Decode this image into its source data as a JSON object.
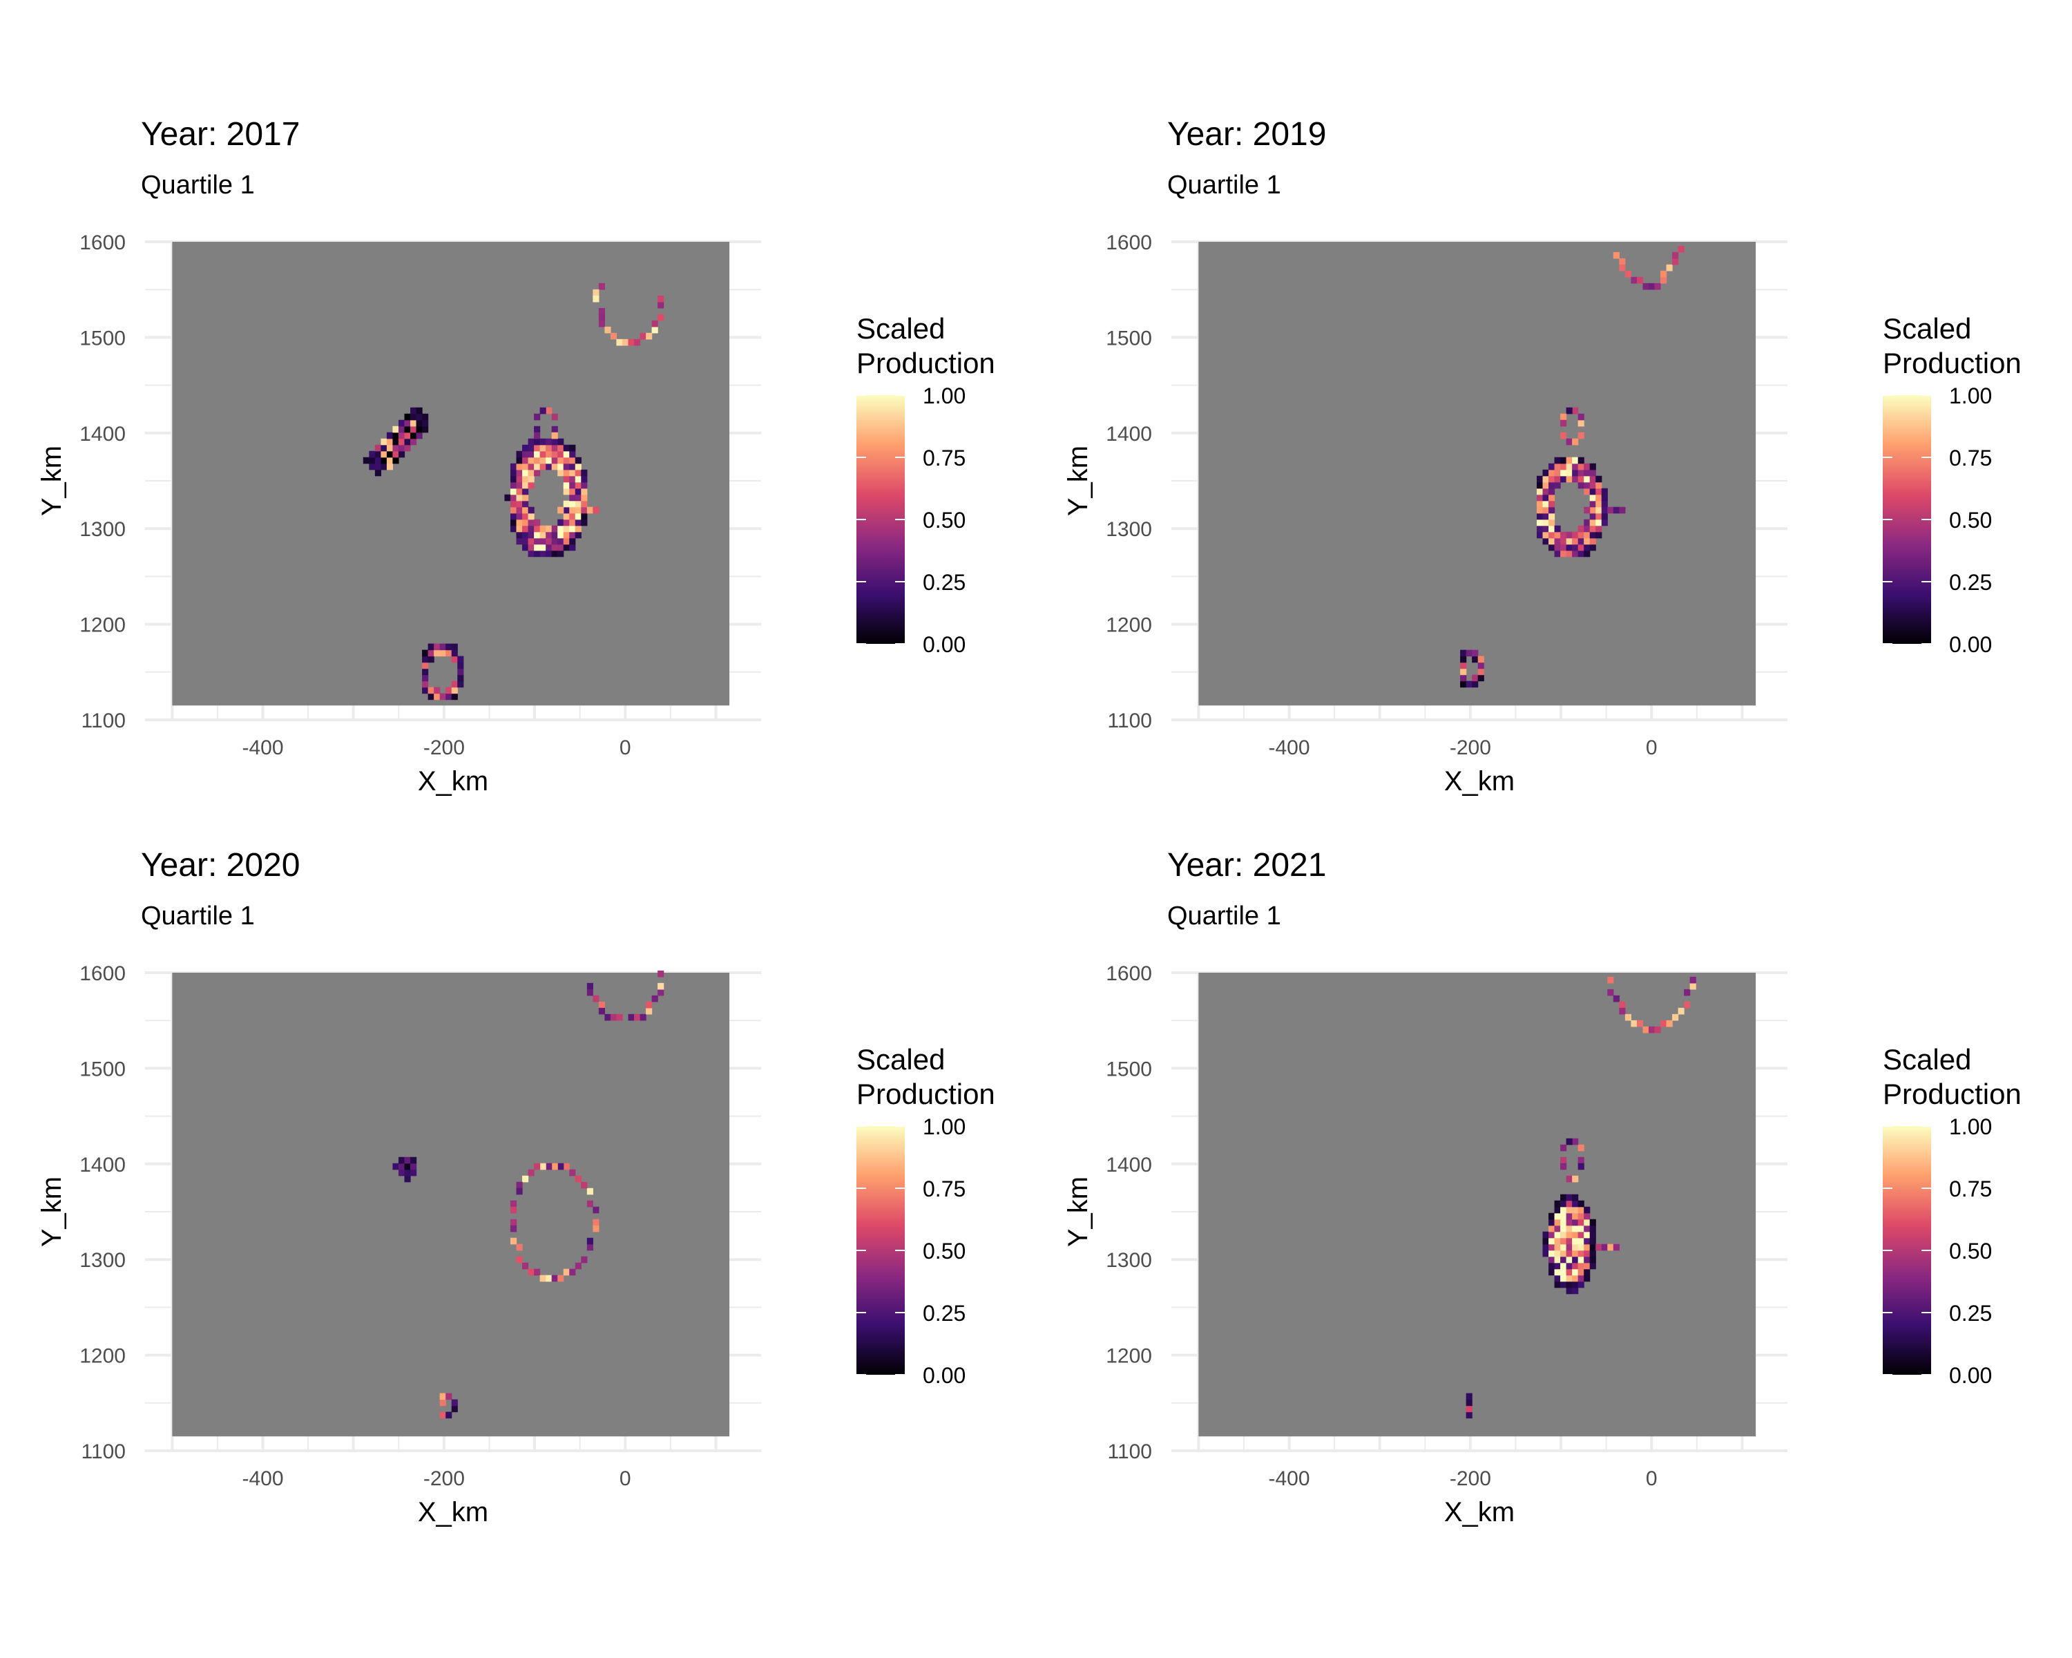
{
  "colors": {
    "panel_background": "#808080",
    "grid_line": "#EBEBEB",
    "tick_text": "#4D4D4D",
    "title_text": "#000000",
    "palette": "magma",
    "gradient_stops": [
      "#000004",
      "#3B0F70",
      "#8C2981",
      "#DE4968",
      "#FE9F6D",
      "#FCFDBF"
    ]
  },
  "legend": {
    "title_line1": "Scaled",
    "title_line2": "Production",
    "ticks": [
      "1.00",
      "0.75",
      "0.50",
      "0.25",
      "0.00"
    ]
  },
  "chart_data": [
    {
      "type": "heatmap",
      "title": "Year: 2017",
      "subtitle": "Quartile 1",
      "xlabel": "X_km",
      "ylabel": "Y_km",
      "xlim": [
        -500,
        115
      ],
      "ylim": [
        1115,
        1600
      ],
      "x_ticks": [
        "-400",
        "-200",
        "0"
      ],
      "y_ticks": [
        "1600",
        "1500",
        "1400",
        "1300",
        "1200",
        "1100"
      ],
      "value_range": [
        0,
        1
      ],
      "features": [
        {
          "kind": "arc",
          "cx": 5,
          "cy": 1540,
          "rx": 35,
          "ry": 45,
          "start": 160,
          "end": 360,
          "steps": 18,
          "v": 0.7,
          "spread": 0.3
        },
        {
          "kind": "blob",
          "x": [
            -285,
            -215
          ],
          "y": [
            1360,
            1425
          ],
          "skew": "diag",
          "v": 0.35,
          "spread": 0.6
        },
        {
          "kind": "ring",
          "cx": -85,
          "cy": 1330,
          "rx": 45,
          "ry": 65,
          "inner": 0.45,
          "v": 0.65,
          "spread": 0.45
        },
        {
          "kind": "arc",
          "cx": -88,
          "cy": 1405,
          "rx": 12,
          "ry": 18,
          "start": 0,
          "end": 360,
          "steps": 12,
          "v": 0.55,
          "spread": 0.4
        },
        {
          "kind": "line",
          "x1": -70,
          "y1": 1318,
          "x2": -35,
          "y2": 1318,
          "steps": 6,
          "v": 0.55,
          "spread": 0.3
        },
        {
          "kind": "ring",
          "cx": -205,
          "cy": 1150,
          "rx": 25,
          "ry": 32,
          "inner": 0.62,
          "v": 0.55,
          "spread": 0.45
        }
      ]
    },
    {
      "type": "heatmap",
      "title": "Year: 2019",
      "subtitle": "Quartile 1",
      "xlabel": "X_km",
      "ylabel": "Y_km",
      "xlim": [
        -500,
        115
      ],
      "ylim": [
        1115,
        1600
      ],
      "x_ticks": [
        "-400",
        "-200",
        "0"
      ],
      "y_ticks": [
        "1600",
        "1500",
        "1400",
        "1300",
        "1200",
        "1100"
      ],
      "value_range": [
        0,
        1
      ],
      "features": [
        {
          "kind": "arc",
          "cx": -5,
          "cy": 1600,
          "rx": 35,
          "ry": 45,
          "start": 200,
          "end": 350,
          "steps": 14,
          "v": 0.6,
          "spread": 0.3
        },
        {
          "kind": "ring",
          "cx": -92,
          "cy": 1320,
          "rx": 40,
          "ry": 55,
          "inner": 0.5,
          "v": 0.6,
          "spread": 0.45
        },
        {
          "kind": "arc",
          "cx": -88,
          "cy": 1408,
          "rx": 12,
          "ry": 15,
          "start": 0,
          "end": 360,
          "steps": 10,
          "v": 0.5,
          "spread": 0.4
        },
        {
          "kind": "line",
          "x1": -72,
          "y1": 1318,
          "x2": -35,
          "y2": 1318,
          "steps": 6,
          "v": 0.5,
          "spread": 0.3
        },
        {
          "kind": "ring",
          "cx": -200,
          "cy": 1150,
          "rx": 15,
          "ry": 22,
          "inner": 0.5,
          "v": 0.45,
          "spread": 0.45
        }
      ]
    },
    {
      "type": "heatmap",
      "title": "Year: 2020",
      "subtitle": "Quartile 1",
      "xlabel": "X_km",
      "ylabel": "Y_km",
      "xlim": [
        -500,
        115
      ],
      "ylim": [
        1115,
        1600
      ],
      "x_ticks": [
        "-400",
        "-200",
        "0"
      ],
      "y_ticks": [
        "1600",
        "1500",
        "1400",
        "1300",
        "1200",
        "1100"
      ],
      "value_range": [
        0,
        1
      ],
      "features": [
        {
          "kind": "arc",
          "cx": 0,
          "cy": 1600,
          "rx": 40,
          "ry": 48,
          "start": 195,
          "end": 355,
          "steps": 16,
          "v": 0.6,
          "spread": 0.35
        },
        {
          "kind": "blob",
          "x": [
            -255,
            -230
          ],
          "y": [
            1385,
            1408
          ],
          "skew": "none",
          "v": 0.15,
          "spread": 0.15
        },
        {
          "kind": "arc",
          "cx": -80,
          "cy": 1340,
          "rx": 45,
          "ry": 60,
          "start": 0,
          "end": 360,
          "steps": 38,
          "v": 0.6,
          "spread": 0.4
        },
        {
          "kind": "ring",
          "cx": -200,
          "cy": 1145,
          "rx": 10,
          "ry": 16,
          "inner": 0.4,
          "v": 0.5,
          "spread": 0.4
        }
      ]
    },
    {
      "type": "heatmap",
      "title": "Year: 2021",
      "subtitle": "Quartile 1",
      "xlabel": "X_km",
      "ylabel": "Y_km",
      "xlim": [
        -500,
        115
      ],
      "ylim": [
        1115,
        1600
      ],
      "x_ticks": [
        "-400",
        "-200",
        "0"
      ],
      "y_ticks": [
        "1600",
        "1500",
        "1400",
        "1300",
        "1200",
        "1100"
      ],
      "value_range": [
        0,
        1
      ],
      "features": [
        {
          "kind": "arc",
          "cx": 0,
          "cy": 1600,
          "rx": 45,
          "ry": 58,
          "start": 190,
          "end": 355,
          "steps": 18,
          "v": 0.6,
          "spread": 0.35
        },
        {
          "kind": "blob",
          "x": [
            -120,
            -65
          ],
          "y": [
            1270,
            1370
          ],
          "skew": "none",
          "v": 0.7,
          "spread": 0.5
        },
        {
          "kind": "arc",
          "cx": -88,
          "cy": 1405,
          "rx": 10,
          "ry": 20,
          "start": 0,
          "end": 360,
          "steps": 12,
          "v": 0.5,
          "spread": 0.4
        },
        {
          "kind": "line",
          "x1": -70,
          "y1": 1315,
          "x2": -40,
          "y2": 1315,
          "steps": 5,
          "v": 0.6,
          "spread": 0.3
        },
        {
          "kind": "blob",
          "x": [
            -208,
            -195
          ],
          "y": [
            1138,
            1158
          ],
          "skew": "none",
          "v": 0.3,
          "spread": 0.3
        }
      ]
    }
  ]
}
